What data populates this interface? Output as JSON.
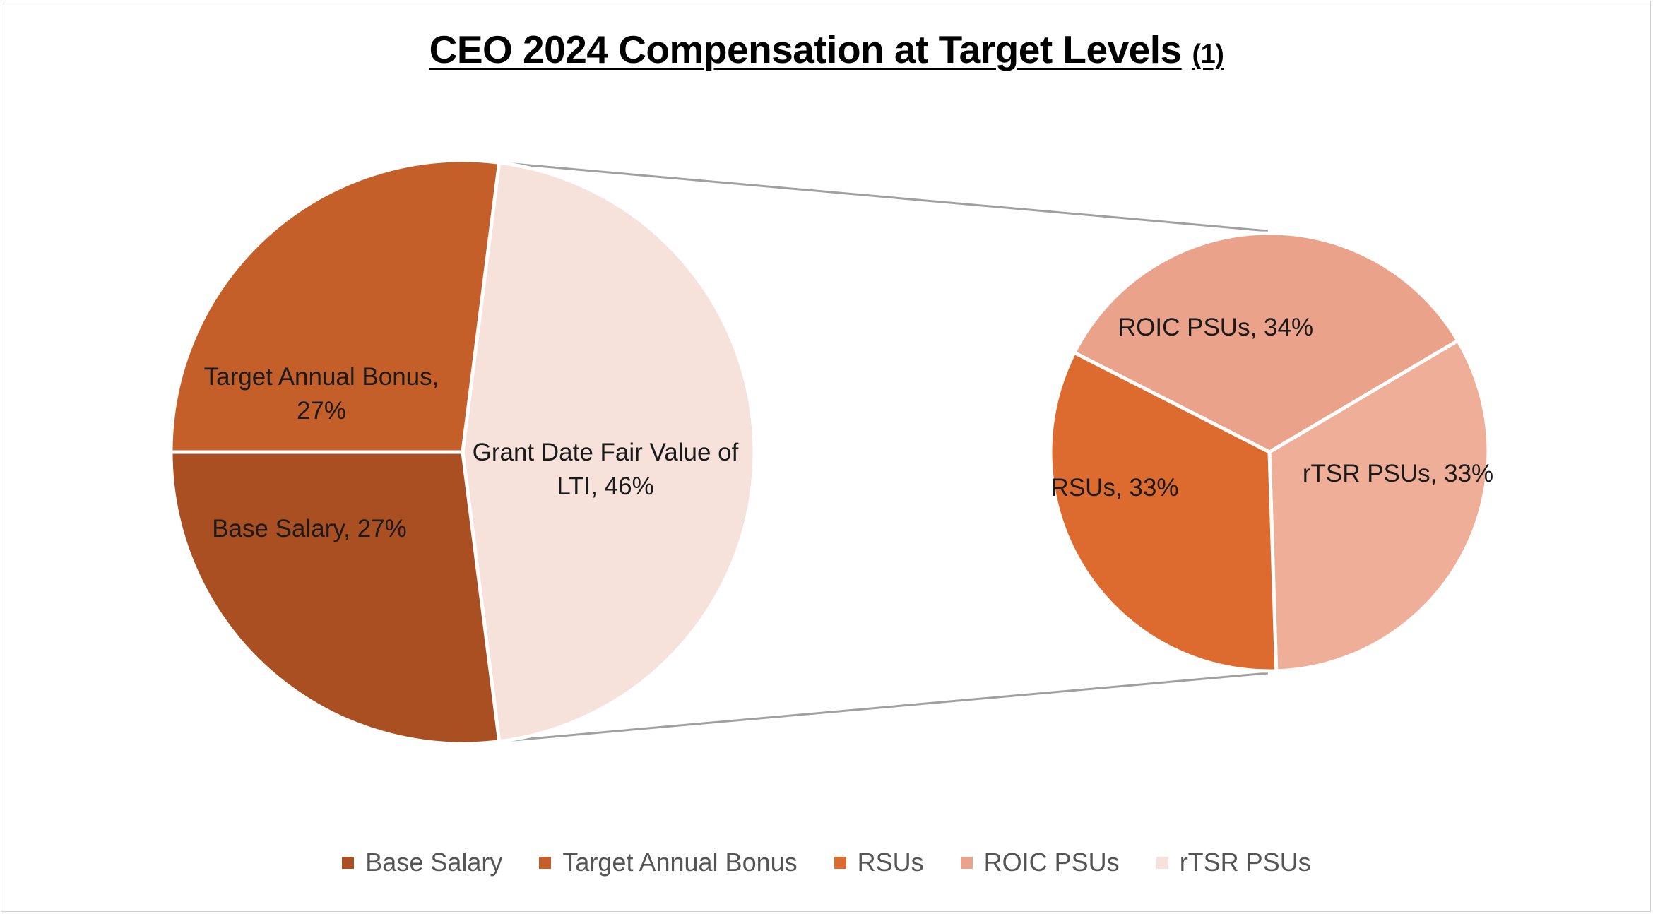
{
  "title": {
    "main": "CEO 2024 Compensation at Target Levels",
    "note": "(1)"
  },
  "chart_data": [
    {
      "type": "pie",
      "slices": [
        {
          "name": "Target Annual Bonus",
          "value": 27,
          "label": "Target Annual Bonus, 27%",
          "color": "#C55F29"
        },
        {
          "name": "Base Salary",
          "value": 27,
          "label": "Base Salary, 27%",
          "color": "#AA4F22"
        },
        {
          "name": "Grant Date Fair Value of LTI",
          "value": 46,
          "label": "Grant Date Fair Value of LTI, 46%",
          "color": "#F6E1DB"
        }
      ]
    },
    {
      "type": "pie",
      "slices": [
        {
          "name": "ROIC PSUs",
          "value": 34,
          "label": "ROIC PSUs, 34%",
          "color": "#EBA28A"
        },
        {
          "name": "rTSR PSUs",
          "value": 33,
          "label": "rTSR PSUs, 33%",
          "color": "#EEAE98"
        },
        {
          "name": "RSUs",
          "value": 33,
          "label": "RSUs, 33%",
          "color": "#DD6B30"
        }
      ]
    }
  ],
  "legend": [
    {
      "label": "Base Salary",
      "color": "#AA4F22"
    },
    {
      "label": "Target Annual Bonus",
      "color": "#C55F29"
    },
    {
      "label": "RSUs",
      "color": "#DD6B30"
    },
    {
      "label": "ROIC PSUs",
      "color": "#EBA28A"
    },
    {
      "label": "rTSR PSUs",
      "color": "#F6E1DB"
    }
  ]
}
